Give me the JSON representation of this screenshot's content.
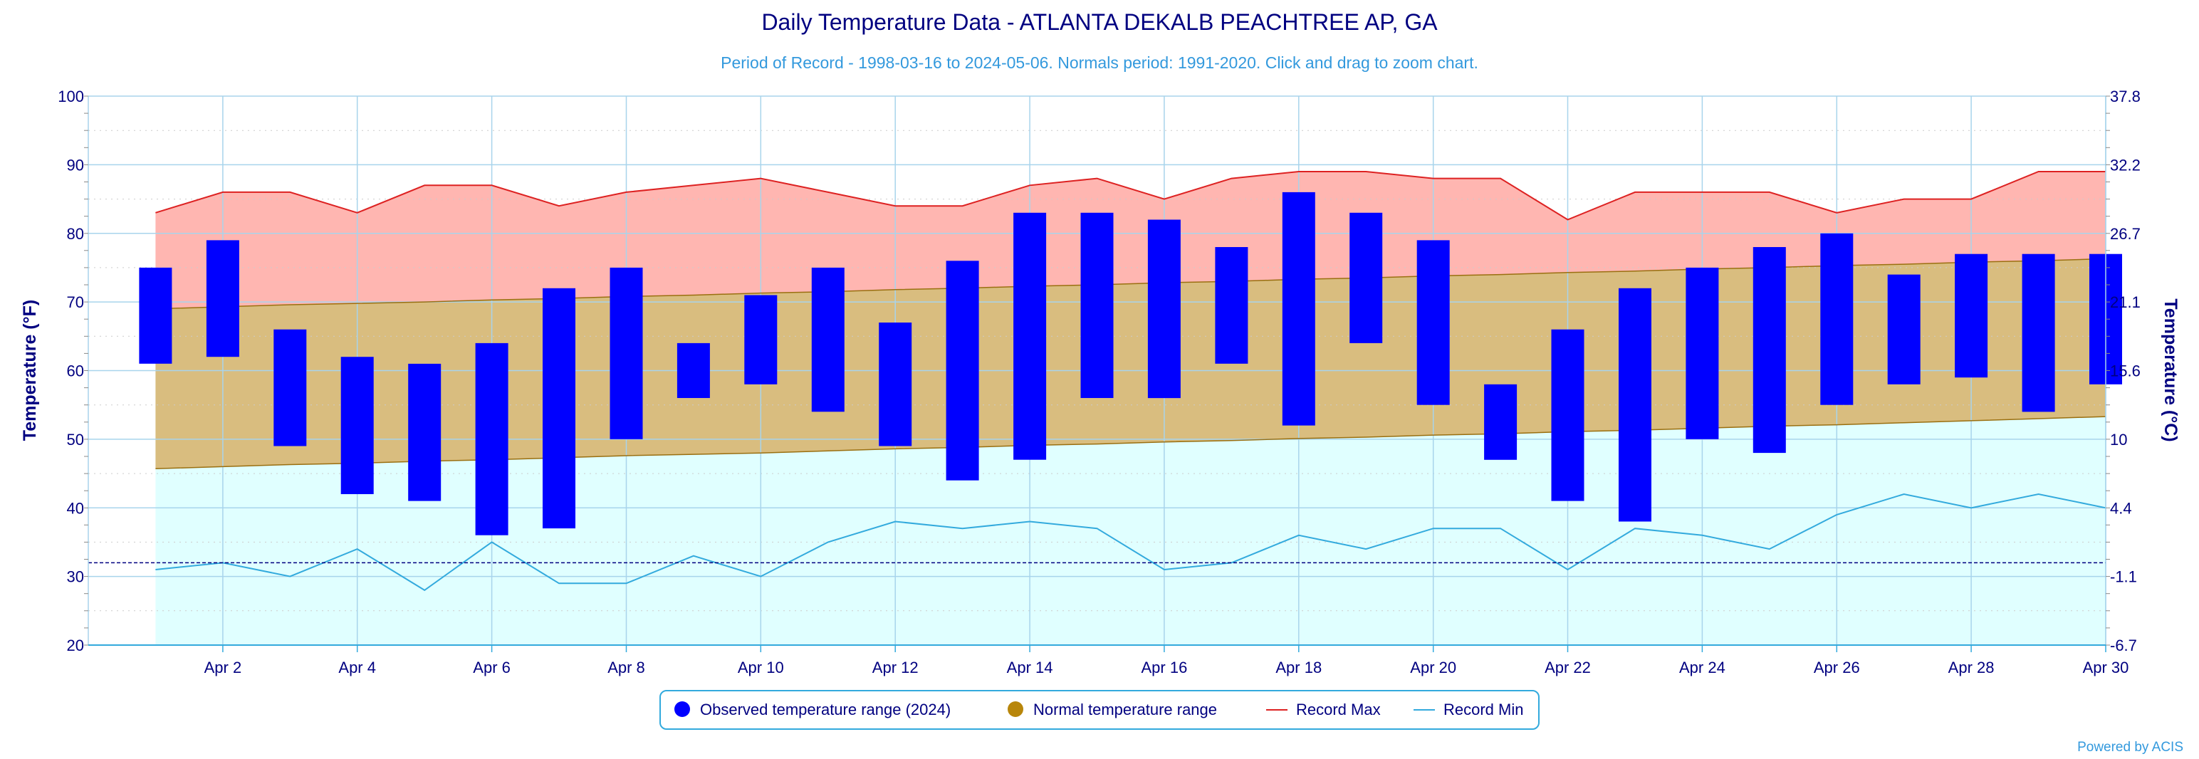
{
  "chart_data": {
    "type": "bar",
    "title": "Daily Temperature Data - ATLANTA DEKALB PEACHTREE AP, GA",
    "subtitle": "Period of Record - 1998-03-16 to 2024-05-06. Normals period: 1991-2020. Click and drag to zoom chart.",
    "credit": "Powered by ACIS",
    "ylabel_left": "Temperature (°F)",
    "ylabel_right": "Temperature (°C)",
    "ylim": [
      20,
      100
    ],
    "y_ticks": [
      20,
      30,
      40,
      50,
      60,
      70,
      80,
      90,
      100
    ],
    "y2_ticks": [
      "-6.7",
      "-1.1",
      "4.4",
      "10",
      "15.6",
      "21.1",
      "26.7",
      "32.2",
      "37.8"
    ],
    "x_day_range": [
      0,
      30
    ],
    "x_tick_days": [
      2,
      4,
      6,
      8,
      10,
      12,
      14,
      16,
      18,
      20,
      22,
      24,
      26,
      28,
      30
    ],
    "x_tick_labels": [
      "Apr 2",
      "Apr 4",
      "Apr 6",
      "Apr 8",
      "Apr 10",
      "Apr 12",
      "Apr 14",
      "Apr 16",
      "Apr 18",
      "Apr 20",
      "Apr 22",
      "Apr 24",
      "Apr 26",
      "Apr 28",
      "Apr 30"
    ],
    "freezing_line": 32,
    "grid": true,
    "legend_position": "bottom-center",
    "days": [
      1,
      2,
      3,
      4,
      5,
      6,
      7,
      8,
      9,
      10,
      11,
      12,
      13,
      14,
      15,
      16,
      17,
      18,
      19,
      20,
      21,
      22,
      23,
      24,
      25,
      26,
      27,
      28,
      29,
      30
    ],
    "series": [
      {
        "name": "Observed temperature range (2024)",
        "color": "#0000ff",
        "low": [
          61,
          62,
          49,
          42,
          41,
          36,
          37,
          50,
          56,
          58,
          54,
          49,
          44,
          47,
          56,
          56,
          61,
          52,
          64,
          55,
          47,
          41,
          38,
          50,
          48,
          55,
          58,
          59,
          54,
          58
        ],
        "high": [
          75,
          79,
          66,
          62,
          61,
          64,
          72,
          75,
          64,
          71,
          75,
          67,
          76,
          83,
          83,
          82,
          78,
          86,
          83,
          79,
          58,
          66,
          72,
          75,
          78,
          80,
          74,
          77,
          77,
          77
        ]
      },
      {
        "name": "Normal temperature range",
        "color": "#b8860b",
        "low": [
          45.7,
          46.0,
          46.3,
          46.5,
          46.8,
          47.0,
          47.3,
          47.6,
          47.8,
          48.0,
          48.3,
          48.6,
          48.8,
          49.1,
          49.3,
          49.6,
          49.8,
          50.1,
          50.3,
          50.6,
          50.8,
          51.1,
          51.3,
          51.6,
          51.9,
          52.1,
          52.4,
          52.7,
          53.0,
          53.3
        ],
        "high": [
          69.0,
          69.3,
          69.6,
          69.8,
          70.0,
          70.3,
          70.5,
          70.8,
          71.0,
          71.3,
          71.5,
          71.8,
          72.0,
          72.3,
          72.5,
          72.8,
          73.0,
          73.3,
          73.5,
          73.8,
          74.0,
          74.3,
          74.5,
          74.8,
          75.0,
          75.3,
          75.5,
          75.8,
          76.0,
          76.3
        ]
      },
      {
        "name": "Record Max",
        "color": "#dd2222",
        "values": [
          83,
          86,
          86,
          83,
          87,
          87,
          84,
          86,
          87,
          88,
          86,
          84,
          84,
          87,
          88,
          85,
          88,
          89,
          89,
          88,
          88,
          82,
          86,
          86,
          86,
          83,
          85,
          85,
          89,
          89
        ]
      },
      {
        "name": "Record Min",
        "color": "#33aadd",
        "values": [
          31,
          32,
          30,
          34,
          28,
          35,
          29,
          29,
          33,
          30,
          35,
          38,
          37,
          38,
          37,
          31,
          32,
          36,
          34,
          37,
          37,
          31,
          37,
          36,
          34,
          39,
          42,
          40,
          42,
          40
        ]
      }
    ]
  }
}
